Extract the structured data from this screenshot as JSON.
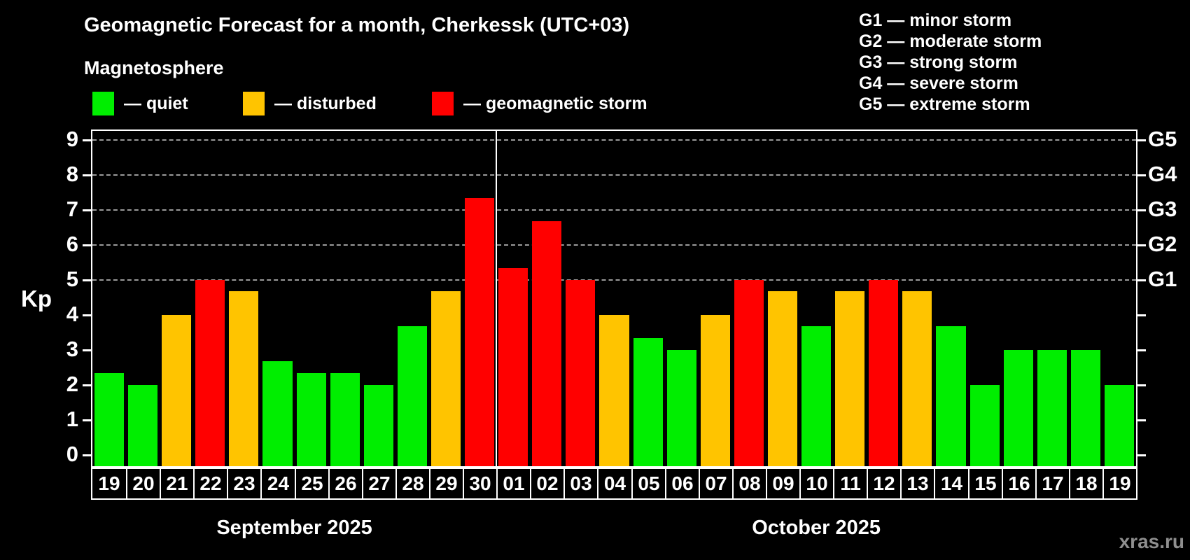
{
  "header": {
    "title": "Geomagnetic Forecast for a month, Cherkessk (UTC+03)",
    "subtitle": "Magnetosphere"
  },
  "legend": {
    "items": [
      {
        "name": "quiet",
        "label": "— quiet",
        "color": "#00ee00"
      },
      {
        "name": "disturbed",
        "label": "— disturbed",
        "color": "#ffc400"
      },
      {
        "name": "storm",
        "label": "— geomagnetic storm",
        "color": "#ff0000"
      }
    ]
  },
  "storm_scale_legend": {
    "items": [
      {
        "text": "G1 — minor storm"
      },
      {
        "text": "G2 — moderate storm"
      },
      {
        "text": "G3 — strong storm"
      },
      {
        "text": "G4 — severe storm"
      },
      {
        "text": "G5 — extreme storm"
      }
    ]
  },
  "watermark": "xras.ru",
  "chart_data": {
    "type": "bar",
    "ylabel": "Kp",
    "ylim": [
      0,
      9.3
    ],
    "yticks": [
      0,
      1,
      2,
      3,
      4,
      5,
      6,
      7,
      8,
      9
    ],
    "grid": "dashed horizontal lines at storm levels only",
    "grid_levels": [
      {
        "kp": 5,
        "label": "G1"
      },
      {
        "kp": 6,
        "label": "G2"
      },
      {
        "kp": 7,
        "label": "G3"
      },
      {
        "kp": 8,
        "label": "G4"
      },
      {
        "kp": 9,
        "label": "G5"
      }
    ],
    "level_colors": {
      "quiet": "#00ee00",
      "disturbed": "#ffc400",
      "storm": "#ff0000"
    },
    "months": [
      {
        "label": "September 2025",
        "days": [
          "19",
          "20",
          "21",
          "22",
          "23",
          "24",
          "25",
          "26",
          "27",
          "28",
          "29",
          "30"
        ],
        "values": [
          2.33,
          2,
          4,
          5,
          4.67,
          2.67,
          2.33,
          2.33,
          2,
          3.67,
          4.67,
          7.33
        ],
        "levels": [
          "quiet",
          "quiet",
          "disturbed",
          "storm",
          "disturbed",
          "quiet",
          "quiet",
          "quiet",
          "quiet",
          "quiet",
          "disturbed",
          "storm"
        ]
      },
      {
        "label": "October 2025",
        "days": [
          "01",
          "02",
          "03",
          "04",
          "05",
          "06",
          "07",
          "08",
          "09",
          "10",
          "11",
          "12",
          "13",
          "14",
          "15",
          "16",
          "17",
          "18",
          "19"
        ],
        "values": [
          5.33,
          6.67,
          5,
          4,
          3.33,
          3,
          4,
          5,
          4.67,
          3.67,
          4.67,
          5,
          4.67,
          3.67,
          2,
          3,
          3,
          3,
          2
        ],
        "levels": [
          "storm",
          "storm",
          "storm",
          "disturbed",
          "quiet",
          "quiet",
          "disturbed",
          "storm",
          "disturbed",
          "quiet",
          "disturbed",
          "storm",
          "disturbed",
          "quiet",
          "quiet",
          "quiet",
          "quiet",
          "quiet",
          "quiet"
        ]
      }
    ]
  }
}
